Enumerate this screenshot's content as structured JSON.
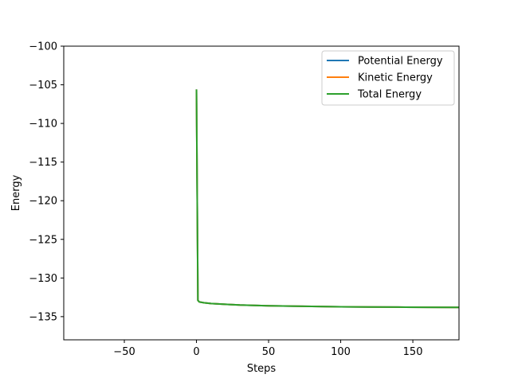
{
  "chart_data": {
    "type": "line",
    "title": "",
    "xlabel": "Steps",
    "ylabel": "Energy",
    "xlim": [
      -92,
      182
    ],
    "ylim": [
      -138,
      -100
    ],
    "xticks": [
      -50,
      0,
      50,
      100,
      150
    ],
    "yticks": [
      -100,
      -105,
      -110,
      -115,
      -120,
      -125,
      -130,
      -135
    ],
    "x_tick_labels": [
      "−50",
      "0",
      "50",
      "100",
      "150"
    ],
    "y_tick_labels": [
      "−100",
      "−105",
      "−110",
      "−115",
      "−120",
      "−125",
      "−130",
      "−135"
    ],
    "grid": false,
    "legend_position": "top-right",
    "x": [
      0,
      1,
      2,
      5,
      10,
      20,
      30,
      40,
      50,
      60,
      80,
      100,
      120,
      140,
      160,
      182
    ],
    "series": [
      {
        "name": "Potential Energy",
        "color": "#1f77b4",
        "values": [
          -105.6,
          -132.9,
          -133.1,
          -133.2,
          -133.3,
          -133.4,
          -133.5,
          -133.55,
          -133.6,
          -133.63,
          -133.68,
          -133.72,
          -133.75,
          -133.77,
          -133.79,
          -133.8
        ]
      },
      {
        "name": "Kinetic Energy",
        "color": "#ff7f0e",
        "values": [
          -105.6,
          -132.9,
          -133.1,
          -133.2,
          -133.3,
          -133.4,
          -133.5,
          -133.55,
          -133.6,
          -133.63,
          -133.68,
          -133.72,
          -133.75,
          -133.77,
          -133.79,
          -133.8
        ]
      },
      {
        "name": "Total Energy",
        "color": "#2ca02c",
        "values": [
          -105.6,
          -132.9,
          -133.1,
          -133.2,
          -133.3,
          -133.4,
          -133.5,
          -133.55,
          -133.6,
          -133.63,
          -133.68,
          -133.72,
          -133.75,
          -133.77,
          -133.79,
          -133.8
        ]
      }
    ]
  }
}
